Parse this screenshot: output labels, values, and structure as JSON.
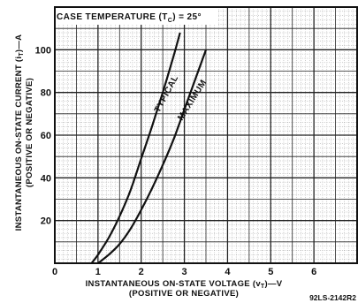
{
  "chart_data": {
    "type": "line",
    "title": "CASE TEMPERATURE (T",
    "title_sub": "C",
    "title_tail": ") = 25°",
    "xlabel": "INSTANTANEOUS ON-STATE VOLTAGE (v",
    "xlabel_sub": "T",
    "xlabel_tail": ")—V",
    "xlabel2": "(POSITIVE OR NEGATIVE)",
    "ylabel": "INSTANTANEOUS ON-STATE CURRENT (i",
    "ylabel_sub": "T",
    "ylabel_tail": ")—A",
    "ylabel2": "(POSITIVE OR NEGATIVE)",
    "xlim": [
      0,
      7
    ],
    "ylim": [
      0,
      120
    ],
    "x_ticks": [
      "0",
      "1",
      "2",
      "3",
      "4",
      "5",
      "6"
    ],
    "y_ticks": [
      "20",
      "40",
      "60",
      "80",
      "100"
    ],
    "grid": true,
    "series": [
      {
        "name": "TYPICAL",
        "x": [
          0.85,
          1.0,
          1.25,
          1.5,
          1.75,
          2.0,
          2.25,
          2.5,
          2.75,
          2.9
        ],
        "y": [
          0,
          4,
          12,
          22,
          34,
          49,
          64,
          80,
          97,
          108
        ]
      },
      {
        "name": "MAXIMUM",
        "x": [
          1.0,
          1.25,
          1.5,
          1.75,
          2.0,
          2.25,
          2.5,
          2.75,
          3.0,
          3.25,
          3.5
        ],
        "y": [
          0,
          4,
          9,
          16,
          25,
          35,
          46,
          58,
          72,
          86,
          100
        ]
      }
    ],
    "colors": {
      "line": "#111111",
      "grid_minor": "#9a9a9a",
      "background": "#ffffff"
    }
  },
  "figure_code": "92LS-2142R2"
}
